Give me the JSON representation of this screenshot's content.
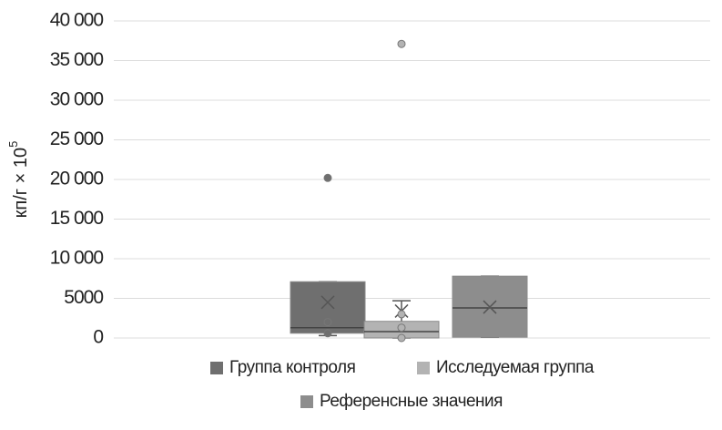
{
  "chart_data": {
    "type": "box",
    "y_label": "кп/г × 10",
    "y_label_sup": "5",
    "ylim": [
      0,
      40000
    ],
    "yticks": [
      0,
      5000,
      {
        "value": 10000,
        "label": "10 000"
      },
      {
        "value": 15000,
        "label": "15 000"
      },
      {
        "value": 20000,
        "label": "20 000"
      },
      {
        "value": 25000,
        "label": "25 000"
      },
      {
        "value": 30000,
        "label": "30 000"
      },
      {
        "value": 35000,
        "label": "35 000"
      },
      {
        "value": 40000,
        "label": "40 000"
      }
    ],
    "grid": true,
    "series": [
      {
        "name": "Группа контроля",
        "color": "#6f6f6f",
        "min": 300,
        "q1": 600,
        "median": 1300,
        "q3": 7100,
        "max": 7100,
        "mean": 4500,
        "points": [
          20200,
          2000,
          600
        ]
      },
      {
        "name": "Исследуемая группа",
        "color": "#b3b3b3",
        "min": 0,
        "q1": 0,
        "median": 800,
        "q3": 2100,
        "max": 4700,
        "mean": 3400,
        "points": [
          37100,
          3000,
          1300,
          0
        ]
      },
      {
        "name": "Референсные значения",
        "color": "#8d8d8d",
        "min": 100,
        "q1": 100,
        "median": 3800,
        "q3": 7800,
        "max": 7800,
        "mean": 3900,
        "points": []
      }
    ]
  }
}
